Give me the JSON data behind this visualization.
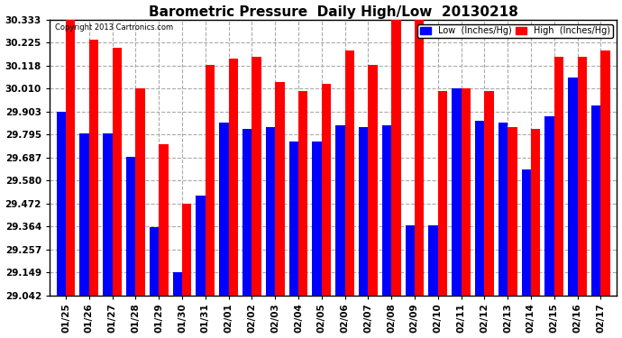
{
  "title": "Barometric Pressure  Daily High/Low  20130218",
  "copyright": "Copyright 2013 Cartronics.com",
  "dates": [
    "01/25",
    "01/26",
    "01/27",
    "01/28",
    "01/29",
    "01/30",
    "01/31",
    "02/01",
    "02/02",
    "02/03",
    "02/04",
    "02/05",
    "02/06",
    "02/07",
    "02/08",
    "02/09",
    "02/10",
    "02/11",
    "02/12",
    "02/13",
    "02/14",
    "02/15",
    "02/16",
    "02/17"
  ],
  "low": [
    29.9,
    29.8,
    29.8,
    29.69,
    29.36,
    29.15,
    29.51,
    29.85,
    29.82,
    29.83,
    29.76,
    29.76,
    29.84,
    29.83,
    29.84,
    29.37,
    29.37,
    30.01,
    29.86,
    29.85,
    29.63,
    29.88,
    30.06,
    29.93
  ],
  "high": [
    30.33,
    30.24,
    30.2,
    30.01,
    29.75,
    29.47,
    30.12,
    30.15,
    30.16,
    30.04,
    30.0,
    30.03,
    30.19,
    30.12,
    30.43,
    30.43,
    30.0,
    30.01,
    30.0,
    29.83,
    29.82,
    30.16,
    30.16,
    30.19
  ],
  "low_color": "#0000ff",
  "high_color": "#ff0000",
  "bg_color": "#ffffff",
  "grid_color": "#aaaaaa",
  "yticks": [
    29.042,
    29.149,
    29.257,
    29.364,
    29.472,
    29.58,
    29.687,
    29.795,
    29.903,
    30.01,
    30.118,
    30.225,
    30.333
  ],
  "ymin": 29.042,
  "ymax": 30.333,
  "title_fontsize": 11,
  "legend_low_label": "Low  (Inches/Hg)",
  "legend_high_label": "High  (Inches/Hg)"
}
